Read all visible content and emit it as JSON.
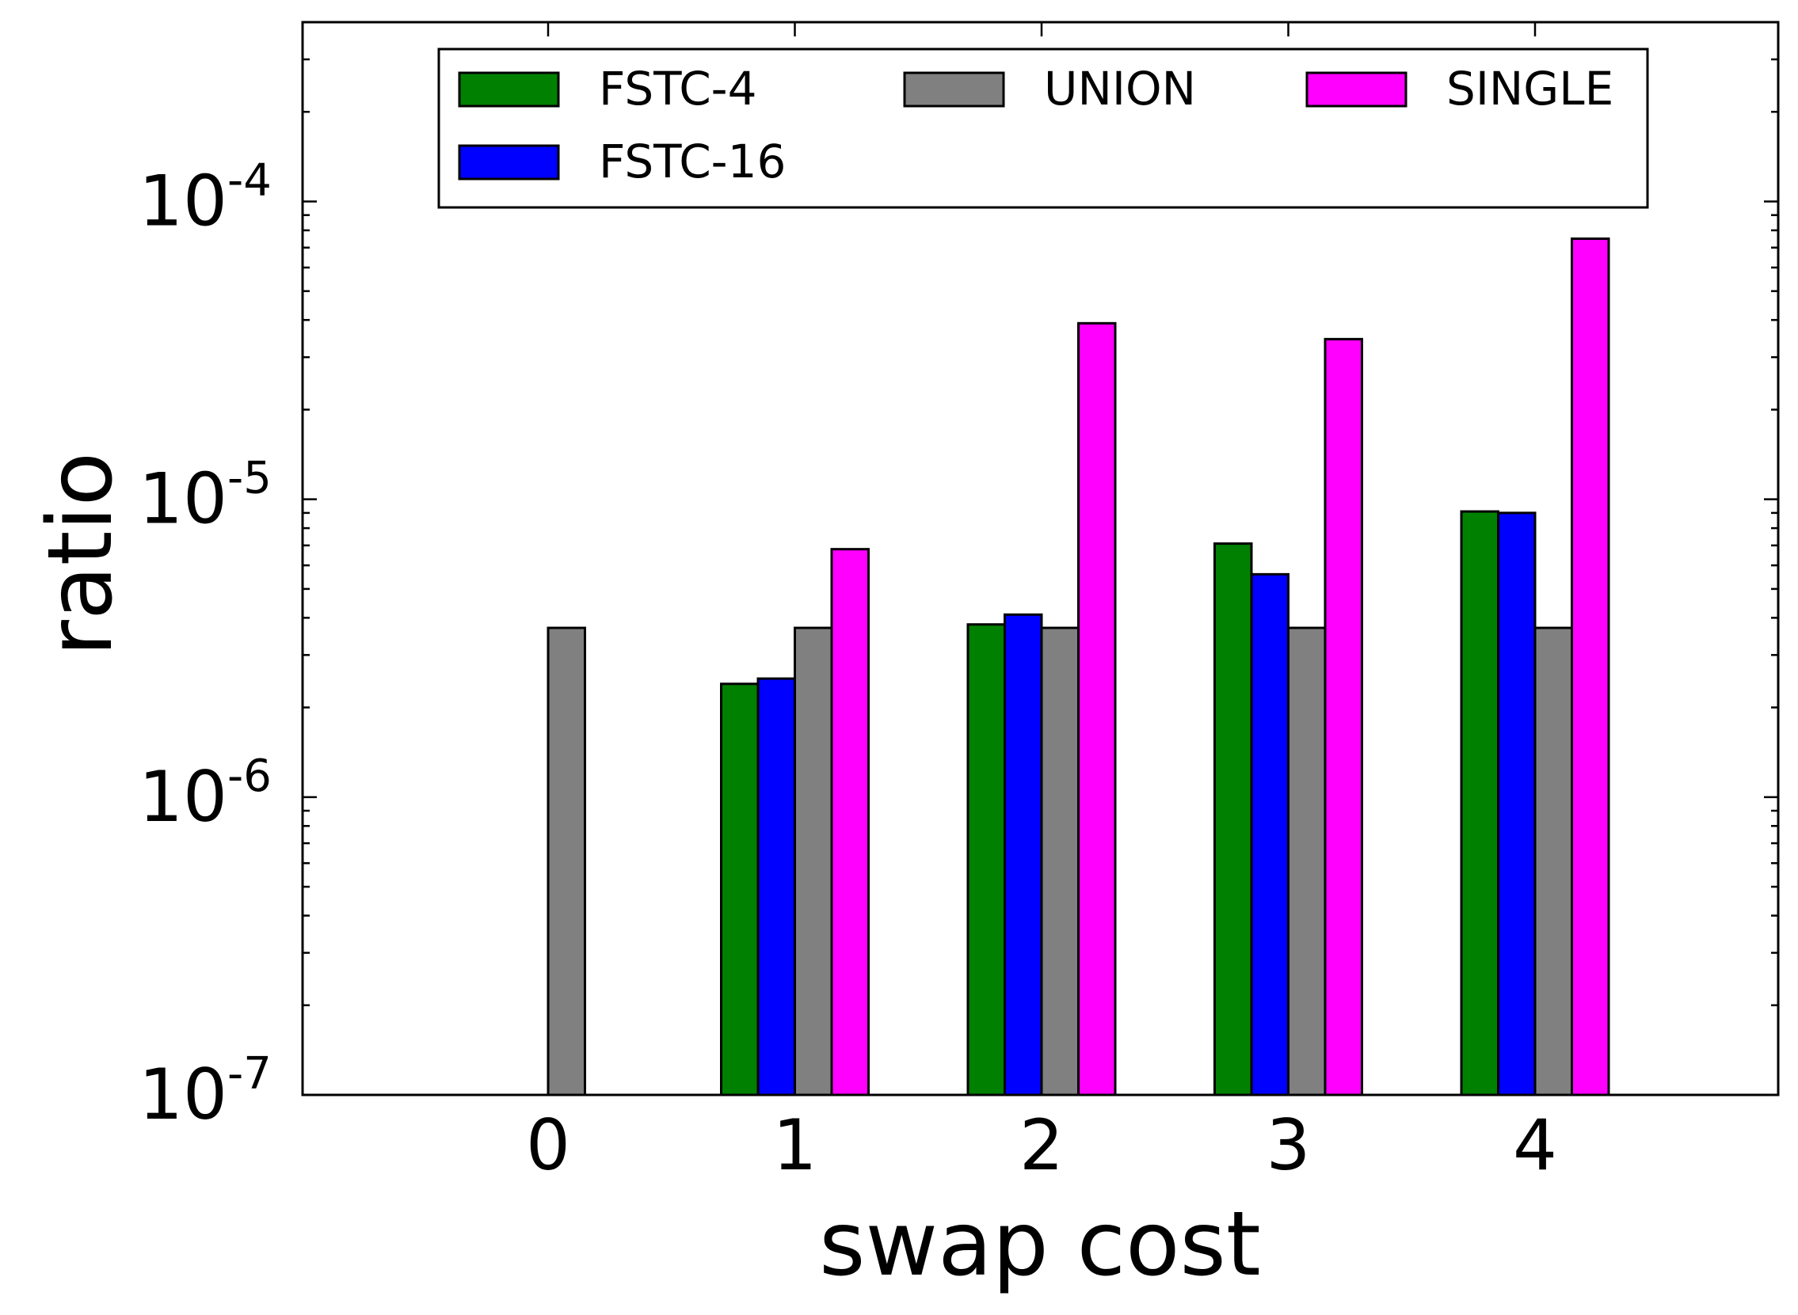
{
  "chart_data": {
    "type": "bar",
    "xlabel": "swap cost",
    "ylabel": "ratio",
    "y_scale": "log",
    "ylim": [
      1e-07,
      0.0004
    ],
    "categories": [
      "0",
      "1",
      "2",
      "3",
      "4"
    ],
    "y_ticks": [
      {
        "value": 1e-07,
        "base": "10",
        "exp": "-7"
      },
      {
        "value": 1e-06,
        "base": "10",
        "exp": "-6"
      },
      {
        "value": 1e-05,
        "base": "10",
        "exp": "-5"
      },
      {
        "value": 0.0001,
        "base": "10",
        "exp": "-4"
      }
    ],
    "series": [
      {
        "name": "FSTC-4",
        "color": "#008000",
        "values": [
          null,
          2.4e-06,
          3.8e-06,
          7.1e-06,
          9.1e-06
        ]
      },
      {
        "name": "FSTC-16",
        "color": "#0000ff",
        "values": [
          null,
          2.5e-06,
          4.1e-06,
          5.6e-06,
          9e-06
        ]
      },
      {
        "name": "UNION",
        "color": "#808080",
        "values": [
          3.7e-06,
          3.7e-06,
          3.7e-06,
          3.7e-06,
          3.7e-06
        ]
      },
      {
        "name": "SINGLE",
        "color": "#ff00ff",
        "values": [
          null,
          6.8e-06,
          3.9e-05,
          3.45e-05,
          7.5e-05
        ]
      }
    ],
    "legend": {
      "placement": "top",
      "columns": 3
    },
    "grid": false
  }
}
